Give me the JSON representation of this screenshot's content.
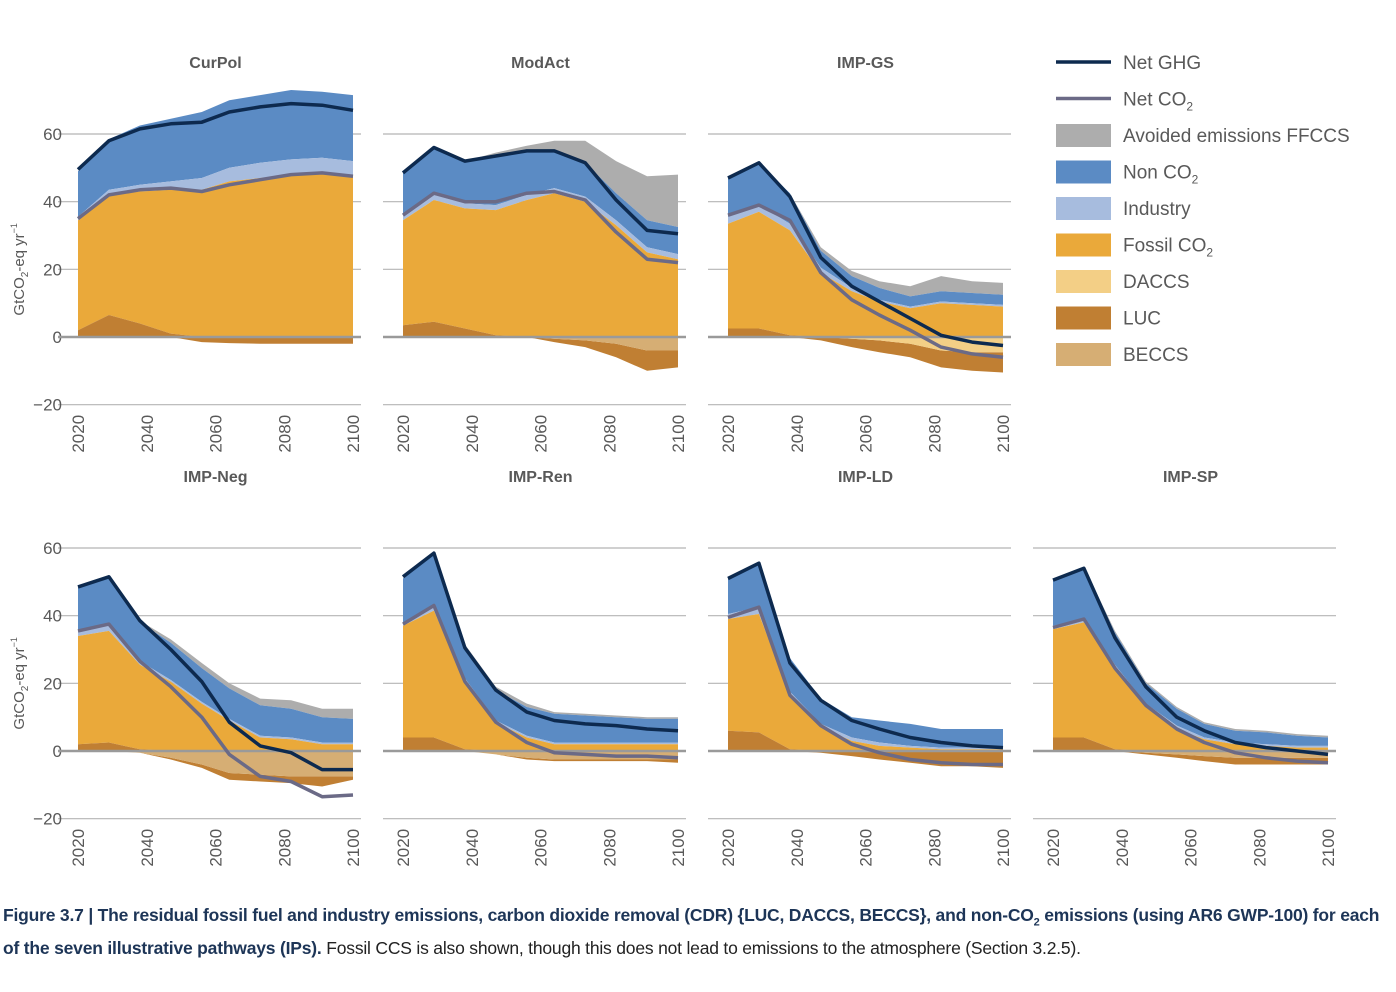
{
  "chart_data": {
    "type": "area",
    "title": "",
    "ylabel": "GtCO2-eq yr-1",
    "ylabel_parts": {
      "main": "GtCO",
      "sub": "2",
      "rest": "-eq yr",
      "sup": "−1"
    },
    "ylim": [
      -20,
      60
    ],
    "yticks": [
      60,
      40,
      20,
      0,
      -20
    ],
    "ytick_labels": [
      "60",
      "40",
      "20",
      "0",
      "−20"
    ],
    "xlim": [
      2020,
      2100
    ],
    "xticks": [
      "2020",
      "2040",
      "2060",
      "2080",
      "2100"
    ],
    "x": [
      2020,
      2029,
      2038,
      2047,
      2056,
      2064,
      2073,
      2082,
      2091,
      2100
    ],
    "grid": true,
    "legend_position": "top-right",
    "colors": {
      "net_ghg": "#0d2a4f",
      "net_co2": "#6b6a86",
      "avoided": "#adadad",
      "non_co2": "#5b8bc4",
      "industry": "#a7bcde",
      "fossil_co2": "#eaa93a",
      "daccs": "#f3cf86",
      "luc": "#c07f33",
      "beccs": "#d6ae74",
      "grid": "#b5b5b5",
      "zero_line": "#9a9a9a",
      "text": "#595959"
    },
    "legend": [
      {
        "key": "net_ghg",
        "label": "Net GHG",
        "sub": "",
        "kind": "line"
      },
      {
        "key": "net_co2",
        "label": "Net CO",
        "sub": "2",
        "kind": "line"
      },
      {
        "key": "avoided",
        "label": "Avoided emissions FFCCS",
        "sub": "",
        "kind": "box"
      },
      {
        "key": "non_co2",
        "label": "Non CO",
        "sub": "2",
        "kind": "box"
      },
      {
        "key": "industry",
        "label": "Industry",
        "sub": "",
        "kind": "box"
      },
      {
        "key": "fossil_co2",
        "label": "Fossil CO",
        "sub": "2",
        "kind": "box"
      },
      {
        "key": "daccs",
        "label": "DACCS",
        "sub": "",
        "kind": "box"
      },
      {
        "key": "luc",
        "label": "LUC",
        "sub": "",
        "kind": "box"
      },
      {
        "key": "beccs",
        "label": "BECCS",
        "sub": "",
        "kind": "box"
      }
    ],
    "panels": [
      {
        "name": "CurPol",
        "show_ylabel": true,
        "series": {
          "luc": [
            2,
            6.5,
            4,
            1,
            -1.5,
            -1.8,
            -2,
            -2,
            -2,
            -2
          ],
          "fossil_co2": [
            32.5,
            35.5,
            39,
            42.5,
            43.5,
            46,
            47,
            48,
            48.5,
            48
          ],
          "industry": [
            1,
            1.5,
            2,
            2.5,
            3.5,
            4,
            4.5,
            4.5,
            4.5,
            4
          ],
          "non_co2": [
            13.5,
            15,
            17.5,
            18.5,
            19.5,
            20,
            20,
            20.5,
            19.5,
            19.5
          ],
          "avoided": [
            0,
            0,
            0,
            0,
            0,
            0,
            0,
            0,
            0,
            0
          ],
          "beccs": [
            0,
            0,
            0,
            0,
            0,
            0,
            0,
            0,
            0,
            0
          ],
          "daccs": [
            0,
            0,
            0,
            0,
            0,
            0,
            0,
            0,
            0,
            0
          ],
          "net_co2": [
            35,
            42,
            43.5,
            44,
            43,
            45,
            46.5,
            48,
            48.5,
            47.5
          ],
          "net_ghg": [
            49.5,
            58,
            61.5,
            63,
            63.5,
            66.5,
            68,
            69,
            68.5,
            67
          ]
        }
      },
      {
        "name": "ModAct",
        "show_ylabel": false,
        "series": {
          "luc": [
            3.5,
            4.5,
            2.5,
            0.5,
            0,
            -1,
            -2,
            -4,
            -6,
            -5
          ],
          "fossil_co2": [
            31,
            36,
            35.5,
            37,
            40.5,
            42.5,
            40,
            33,
            25,
            23
          ],
          "industry": [
            1.5,
            1.5,
            1.5,
            1.5,
            1.5,
            1.5,
            1.5,
            1.5,
            1.5,
            1.5
          ],
          "non_co2": [
            12.5,
            14,
            12.5,
            15,
            13,
            11,
            10,
            8,
            8,
            8
          ],
          "avoided": [
            0,
            0,
            0,
            0.5,
            1.5,
            3,
            6.5,
            9.5,
            13,
            15.5
          ],
          "beccs": [
            0,
            0,
            0,
            0,
            0,
            -0.5,
            -1,
            -2,
            -4,
            -4
          ],
          "daccs": [
            0,
            0,
            0,
            0,
            0,
            0,
            0,
            0,
            0,
            0
          ],
          "net_co2": [
            36,
            42.5,
            40,
            40,
            42.5,
            43,
            40.5,
            31,
            23,
            22
          ],
          "net_ghg": [
            48.5,
            56,
            52,
            53.5,
            55,
            55,
            51.5,
            40.5,
            31.5,
            30.5
          ]
        }
      },
      {
        "name": "IMP-GS",
        "show_ylabel": false,
        "series": {
          "luc": [
            2.5,
            2.5,
            0.5,
            -1,
            -2.5,
            -3.5,
            -4,
            -5,
            -5.5,
            -6
          ],
          "fossil_co2": [
            31,
            34.5,
            31,
            19,
            13.5,
            10.5,
            8.5,
            10,
            9.5,
            9
          ],
          "industry": [
            2,
            2,
            2,
            1.5,
            1,
            0.5,
            0.5,
            0.5,
            0.5,
            0.5
          ],
          "non_co2": [
            11.5,
            12.5,
            9,
            5,
            3.5,
            3.5,
            3,
            3,
            3,
            3
          ],
          "avoided": [
            0,
            0,
            0,
            1,
            1.5,
            2,
            3,
            4.5,
            3.5,
            3.5
          ],
          "beccs": [
            0,
            0,
            0,
            0,
            0,
            0,
            0,
            0,
            0,
            0
          ],
          "daccs": [
            0,
            0,
            0,
            0,
            -0.5,
            -1,
            -2,
            -4,
            -4.5,
            -4.5
          ],
          "net_co2": [
            36,
            39,
            34.5,
            19,
            11,
            6.5,
            2,
            -3,
            -5,
            -6
          ],
          "net_ghg": [
            47,
            51.5,
            41.5,
            23.5,
            15,
            10.5,
            5.5,
            0.5,
            -1.5,
            -2.5
          ]
        }
      },
      {
        "name": "IMP-Neg",
        "show_ylabel": true,
        "series": {
          "luc": [
            2,
            2.5,
            0.5,
            -0.5,
            -1,
            -2,
            -2,
            -2,
            -3,
            -1
          ],
          "fossil_co2": [
            32,
            33,
            25,
            20.5,
            14,
            9,
            4,
            3.5,
            2,
            2
          ],
          "industry": [
            1.5,
            1.5,
            1,
            0.5,
            0.5,
            0.5,
            0.5,
            0.5,
            0.5,
            0.5
          ],
          "non_co2": [
            13,
            15,
            11.5,
            11,
            10,
            9,
            9,
            8.5,
            7.5,
            7
          ],
          "avoided": [
            0,
            0,
            0.5,
            1,
            1.5,
            1.5,
            2,
            2.5,
            2.5,
            3
          ],
          "beccs": [
            0,
            0,
            -0.5,
            -2,
            -4,
            -6.5,
            -7,
            -7.5,
            -7.5,
            -7.5
          ],
          "daccs": [
            0,
            0,
            0,
            0,
            0,
            0,
            0,
            0,
            0,
            0
          ],
          "net_co2": [
            35.5,
            37.5,
            26.5,
            19,
            10,
            -1,
            -7.5,
            -9,
            -13.5,
            -13
          ],
          "net_ghg": [
            48.5,
            51.5,
            38.5,
            30,
            20.5,
            8.5,
            1.5,
            -0.5,
            -5.5,
            -5.5
          ]
        }
      },
      {
        "name": "IMP-Ren",
        "show_ylabel": false,
        "series": {
          "luc": [
            4,
            4,
            0.5,
            0,
            -0.5,
            -0.5,
            -0.5,
            -0.5,
            -0.5,
            -1
          ],
          "fossil_co2": [
            33,
            37.5,
            20,
            8.5,
            4,
            2,
            2,
            2,
            2,
            2
          ],
          "industry": [
            1,
            1.5,
            1,
            0.5,
            0.5,
            0.5,
            0.5,
            0.5,
            0.5,
            0.5
          ],
          "non_co2": [
            13,
            15.5,
            9.5,
            9,
            8.5,
            8.5,
            8,
            7.5,
            7,
            7
          ],
          "avoided": [
            0,
            0,
            0.5,
            1,
            1,
            0.5,
            0.5,
            0.5,
            0.5,
            0.5
          ],
          "beccs": [
            0,
            0,
            0,
            -1,
            -2,
            -2.5,
            -2.5,
            -2.5,
            -2.5,
            -2.5
          ],
          "daccs": [
            0,
            0,
            0,
            0,
            0,
            0,
            0,
            0,
            0,
            0
          ],
          "net_co2": [
            37.5,
            43,
            20.5,
            8.5,
            2.5,
            -0.5,
            -1,
            -1.5,
            -1.5,
            -2
          ],
          "net_ghg": [
            51.5,
            58.5,
            30.5,
            18,
            11.5,
            9,
            8,
            7.5,
            6.5,
            6
          ]
        }
      },
      {
        "name": "IMP-LD",
        "show_ylabel": false,
        "series": {
          "luc": [
            6,
            5.5,
            0.5,
            -0.5,
            -1.5,
            -2.5,
            -3.5,
            -4.5,
            -4.5,
            -5
          ],
          "fossil_co2": [
            33,
            35,
            16,
            7,
            3,
            1.5,
            1,
            0.5,
            0.5,
            0.5
          ],
          "industry": [
            1.5,
            2,
            1,
            1,
            1,
            1,
            0.5,
            0.5,
            0.5,
            0.5
          ],
          "non_co2": [
            11,
            12.5,
            10,
            7.5,
            6,
            6.5,
            6.5,
            5.5,
            5.5,
            5.5
          ],
          "avoided": [
            0,
            0,
            0,
            0,
            0,
            0,
            0,
            0,
            0,
            0
          ],
          "beccs": [
            0,
            0,
            0,
            0,
            0,
            0,
            0,
            0,
            0,
            0
          ],
          "daccs": [
            0,
            0,
            0,
            0,
            0,
            0,
            0,
            0,
            0,
            0
          ],
          "net_co2": [
            39.5,
            42.5,
            16.5,
            7.5,
            2,
            -0.5,
            -2.5,
            -3.5,
            -4,
            -4
          ],
          "net_ghg": [
            51,
            55.5,
            26,
            15,
            9,
            6.5,
            4,
            2.5,
            1.5,
            1
          ]
        }
      },
      {
        "name": "IMP-SP",
        "show_ylabel": false,
        "series": {
          "luc": [
            4,
            4,
            0.5,
            -0.5,
            -1,
            -1.5,
            -2,
            -2,
            -2,
            -2
          ],
          "fossil_co2": [
            32,
            34,
            24,
            13,
            6.5,
            3.5,
            2,
            1.5,
            1,
            1
          ],
          "industry": [
            1,
            1,
            1,
            1,
            1,
            0.5,
            0.5,
            0.5,
            0.5,
            0.5
          ],
          "non_co2": [
            13.5,
            15.5,
            9.5,
            6,
            5,
            4,
            3.5,
            3.5,
            3,
            2.5
          ],
          "avoided": [
            0,
            0,
            0.5,
            0.5,
            0.5,
            0.5,
            0.5,
            0.5,
            0.5,
            0.5
          ],
          "beccs": [
            0,
            0,
            0,
            -0.5,
            -1,
            -1.5,
            -2,
            -2,
            -2,
            -2
          ],
          "daccs": [
            0,
            0,
            0,
            0,
            0,
            0,
            0,
            0,
            0,
            0
          ],
          "net_co2": [
            36.5,
            39,
            24.5,
            13.5,
            6.5,
            2.5,
            -0.5,
            -2,
            -3,
            -3.5
          ],
          "net_ghg": [
            50.5,
            54,
            33.5,
            19,
            10,
            6,
            2.5,
            1,
            0,
            -1
          ]
        }
      }
    ]
  },
  "caption": {
    "bold_part1": "Figure 3.7 | The residual fossil fuel and industry emissions, carbon dioxide removal (CDR) {LUC, DACCS, BECCS}, and non-CO",
    "bold_sub": "2",
    "bold_part2": " emissions (using AR6 GWP-100) for each of the seven illustrative pathways (IPs).",
    "plain": " Fossil CCS is also shown, though this does not lead to emissions to the atmosphere (Section 3.2.5)."
  }
}
